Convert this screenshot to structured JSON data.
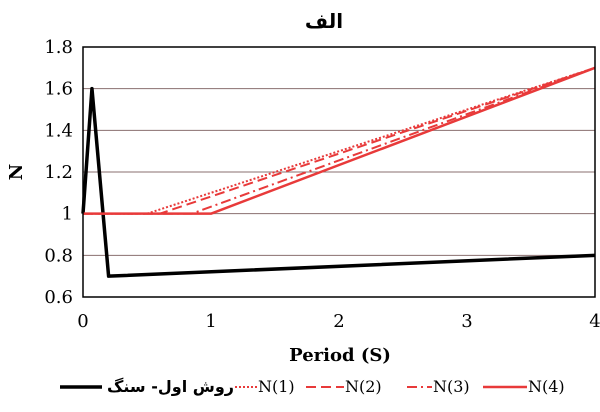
{
  "chart_data": {
    "type": "line",
    "title": "الف",
    "xlabel": "Period (S)",
    "ylabel": "N",
    "xlim": [
      0,
      4
    ],
    "ylim": [
      0.6,
      1.8
    ],
    "xticks": [
      "0",
      "1",
      "2",
      "3",
      "4"
    ],
    "yticks": [
      "0.6",
      "0.8",
      "1",
      "1.2",
      "1.4",
      "1.6",
      "1.8"
    ],
    "grid": "horizontal",
    "legend_position": "bottom",
    "series": [
      {
        "name": "روش اول- سنگ",
        "color": "#000000",
        "style": "solid",
        "x": [
          0,
          0.07,
          0.2,
          4
        ],
        "y": [
          1.0,
          1.6,
          0.7,
          0.8
        ]
      },
      {
        "name": "N(1)",
        "color": "#e83a3a",
        "style": "dotted",
        "x": [
          0,
          0.5,
          4
        ],
        "y": [
          1.0,
          1.0,
          1.7
        ]
      },
      {
        "name": "N(2)",
        "color": "#e83a3a",
        "style": "dashed",
        "x": [
          0,
          0.6,
          4
        ],
        "y": [
          1.0,
          1.0,
          1.7
        ]
      },
      {
        "name": "N(3)",
        "color": "#e83a3a",
        "style": "dashdot",
        "x": [
          0,
          0.85,
          4
        ],
        "y": [
          1.0,
          1.0,
          1.7
        ]
      },
      {
        "name": "N(4)",
        "color": "#e83a3a",
        "style": "solid",
        "x": [
          0,
          1.0,
          4
        ],
        "y": [
          1.0,
          1.0,
          1.7
        ]
      }
    ]
  }
}
